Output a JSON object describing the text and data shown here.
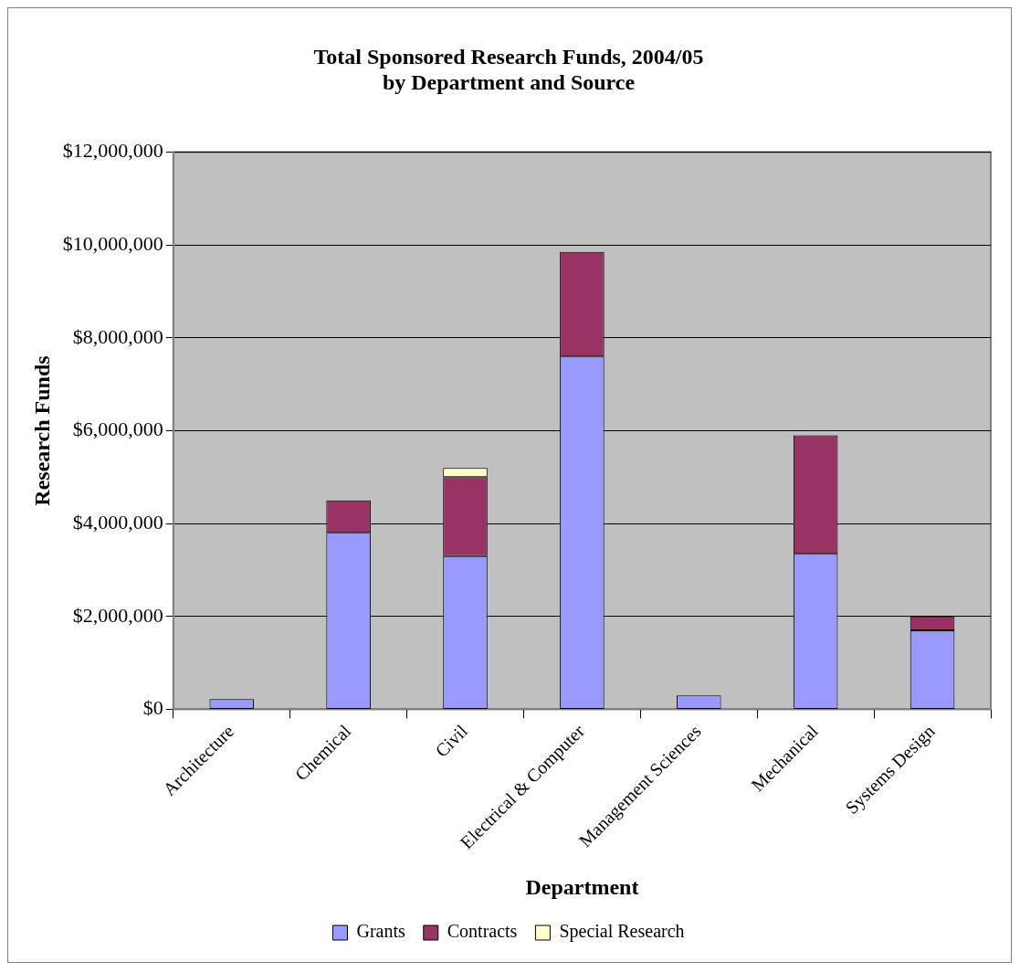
{
  "chart_data": {
    "type": "bar",
    "title": "Total Sponsored Research Funds, 2004/05\nby Department and Source",
    "xlabel": "Department",
    "ylabel": "Research Funds",
    "categories": [
      "Architecture",
      "Chemical",
      "Civil",
      "Electrical & Computer",
      "Management Sciences",
      "Mechanical",
      "Systems Design"
    ],
    "stacked": true,
    "series": [
      {
        "name": "Grants",
        "color": "#9999ff",
        "values": [
          220000.0,
          3800000.0,
          3300000.0,
          7600000.0,
          300000.0,
          3350000.0,
          1700000.0
        ]
      },
      {
        "name": "Contracts",
        "color": "#993366",
        "values": [
          0,
          700000.0,
          1700000.0,
          2250000.0,
          0,
          2550000.0,
          300000.0
        ]
      },
      {
        "name": "Special Research",
        "color": "#ffffcc",
        "values": [
          0,
          0,
          200000.0,
          0,
          0,
          0,
          0
        ]
      }
    ],
    "ylim": [
      0,
      12000000
    ],
    "yticks": [
      {
        "value": 0,
        "label": "$0"
      },
      {
        "value": 2000000,
        "label": "$2,000,000"
      },
      {
        "value": 4000000,
        "label": "$4,000,000"
      },
      {
        "value": 6000000,
        "label": "$6,000,000"
      },
      {
        "value": 8000000,
        "label": "$8,000,000"
      },
      {
        "value": 10000000,
        "label": "$10,000,000"
      },
      {
        "value": 12000000,
        "label": "$12,000,000"
      }
    ],
    "grid": "y",
    "legend": "bottom"
  }
}
